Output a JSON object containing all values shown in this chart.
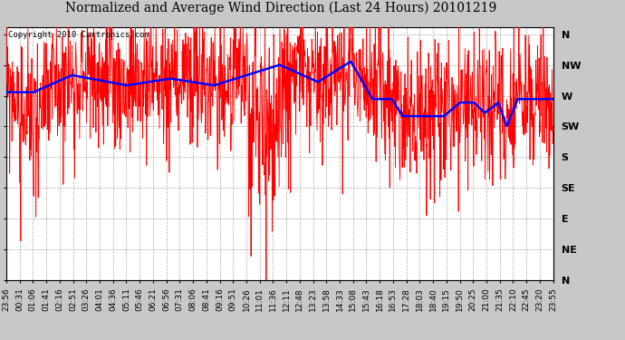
{
  "title": "Normalized and Average Wind Direction (Last 24 Hours) 20101219",
  "copyright": "Copyright 2010 Cartronics.com",
  "background_color": "#c8c8c8",
  "plot_bg_color": "#ffffff",
  "grid_color": "#aaaaaa",
  "ytick_labels": [
    "N",
    "NW",
    "W",
    "SW",
    "S",
    "SE",
    "E",
    "NE",
    "N"
  ],
  "ytick_values": [
    360,
    315,
    270,
    225,
    180,
    135,
    90,
    45,
    0
  ],
  "ylim": [
    0,
    370
  ],
  "x_labels": [
    "23:56",
    "00:31",
    "01:06",
    "01:41",
    "02:16",
    "02:51",
    "03:26",
    "04:01",
    "04:36",
    "05:11",
    "05:46",
    "06:21",
    "06:56",
    "07:31",
    "08:06",
    "08:41",
    "09:16",
    "09:51",
    "10:26",
    "11:01",
    "11:36",
    "12:11",
    "12:48",
    "13:23",
    "13:58",
    "14:33",
    "15:08",
    "15:43",
    "16:18",
    "16:53",
    "17:28",
    "18:03",
    "18:40",
    "19:15",
    "19:50",
    "20:25",
    "21:00",
    "21:35",
    "22:10",
    "22:45",
    "23:20",
    "23:55"
  ],
  "red_line_color": "#ff0000",
  "blue_line_color": "#0000ff",
  "title_fontsize": 10,
  "copyright_fontsize": 6.5,
  "tick_fontsize": 6.5,
  "ylabel_fontsize": 8
}
